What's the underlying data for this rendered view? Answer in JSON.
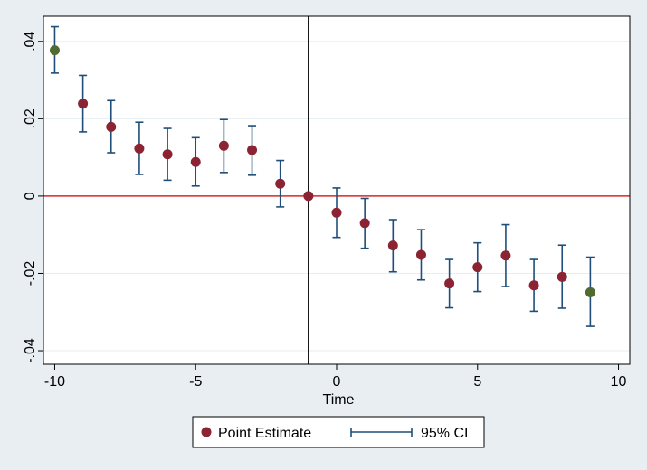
{
  "chart_data": {
    "type": "scatter",
    "title": "",
    "xlabel": "Time",
    "ylabel": "",
    "xlim": [
      -10.4,
      10.4
    ],
    "ylim": [
      -0.0435,
      0.0465
    ],
    "x_ticks": [
      -10,
      -5,
      0,
      5,
      10
    ],
    "x_tick_labels": [
      "-10",
      "-5",
      "0",
      "5",
      "10"
    ],
    "y_ticks": [
      -0.04,
      -0.02,
      0,
      0.02,
      0.04
    ],
    "y_tick_labels": [
      "-.04",
      "-.02",
      "0",
      ".02",
      ".04"
    ],
    "grid": true,
    "reference_lines": {
      "vertical_x": -1,
      "horizontal_y": 0
    },
    "legend": {
      "position": "bottom-center",
      "entries": [
        "Point Estimate",
        "95% CI"
      ]
    },
    "series": [
      {
        "name": "Point Estimate",
        "x": [
          -10,
          -9,
          -8,
          -7,
          -6,
          -5,
          -4,
          -3,
          -2,
          -1,
          0,
          1,
          2,
          3,
          4,
          5,
          6,
          7,
          8,
          9
        ],
        "values": [
          0.0377,
          0.0239,
          0.0179,
          0.0123,
          0.0108,
          0.0088,
          0.013,
          0.0119,
          0.0032,
          0.0,
          -0.0043,
          -0.007,
          -0.0128,
          -0.0152,
          -0.0226,
          -0.0184,
          -0.0154,
          -0.0231,
          -0.0209,
          -0.0249
        ]
      },
      {
        "name": "95% CI",
        "x": [
          -10,
          -9,
          -8,
          -7,
          -6,
          -5,
          -4,
          -3,
          -2,
          0,
          1,
          2,
          3,
          4,
          5,
          6,
          7,
          8,
          9
        ],
        "lower": [
          0.0318,
          0.0166,
          0.0112,
          0.0056,
          0.0041,
          0.0026,
          0.0061,
          0.0054,
          -0.0028,
          -0.0107,
          -0.0135,
          -0.0196,
          -0.0217,
          -0.0289,
          -0.0247,
          -0.0234,
          -0.0298,
          -0.029,
          -0.0337
        ],
        "upper": [
          0.0438,
          0.0312,
          0.0247,
          0.0191,
          0.0175,
          0.0151,
          0.0198,
          0.0182,
          0.0092,
          0.0021,
          -0.0006,
          -0.0061,
          -0.0087,
          -0.0164,
          -0.0121,
          -0.0074,
          -0.0164,
          -0.0127,
          -0.0158
        ]
      }
    ],
    "colors": {
      "point": "#8b2332",
      "endpoint": "#4f6b31",
      "ci": "#1f4e79",
      "hline": "#d62728",
      "vline": "#000000",
      "grid": "#e6eef2",
      "plot_bg": "#ffffff",
      "outer_bg": "#e8eef2"
    }
  }
}
